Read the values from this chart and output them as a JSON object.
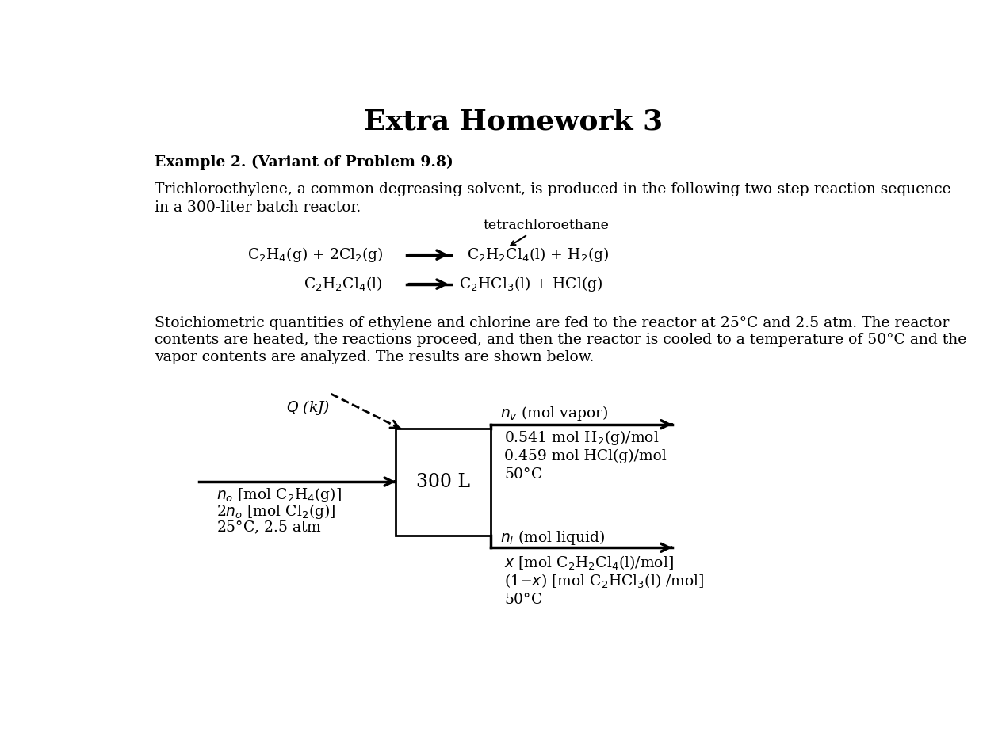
{
  "title": "Extra Homework 3",
  "title_fontsize": 26,
  "title_fontweight": "bold",
  "bg_color": "#ffffff",
  "example_header": "Example 2. (Variant of Problem 9.8)",
  "paragraph1_line1": "Trichloroethylene, a common degreasing solvent, is produced in the following two-step reaction sequence",
  "paragraph1_line2": "in a 300-liter batch reactor.",
  "tetrachloroethane_label": "tetrachloroethane",
  "paragraph2_line1": "Stoichiometric quantities of ethylene and chlorine are fed to the reactor at 25°C and 2.5 atm. The reactor",
  "paragraph2_line2": "contents are heated, the reactions proceed, and then the reactor is cooled to a temperature of 50°C and the",
  "paragraph2_line3": "vapor contents are analyzed. The results are shown below.",
  "box_label": "300 L",
  "font_size_body": 13.5,
  "font_size_diagram": 13.5,
  "font_size_title_example": 13.5
}
